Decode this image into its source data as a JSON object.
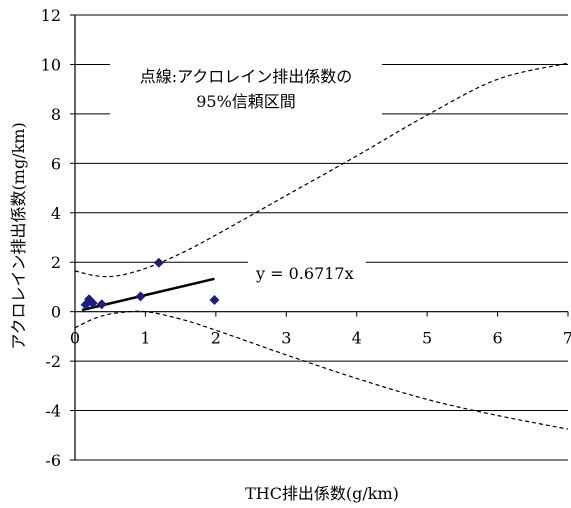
{
  "chart_data": {
    "type": "scatter",
    "xlabel": "THC排出係数(g/km)",
    "ylabel": "アクロレイン排出係数(mg/km)",
    "xlim": [
      0,
      7
    ],
    "ylim": [
      -6,
      12
    ],
    "x_ticks": [
      0,
      1,
      2,
      3,
      4,
      5,
      6,
      7
    ],
    "y_ticks": [
      -6,
      -4,
      -2,
      0,
      2,
      4,
      6,
      8,
      10,
      12
    ],
    "x_tick_labels": [
      "0",
      "1",
      "2",
      "3",
      "4",
      "5",
      "6",
      "7"
    ],
    "y_tick_labels": [
      "-6",
      "-4",
      "-2",
      "0",
      "2",
      "4",
      "6",
      "8",
      "10",
      "12"
    ],
    "grid": "horizontal",
    "marker_color": "#1f1f7a",
    "points": [
      {
        "x": 0.15,
        "y": 0.28
      },
      {
        "x": 0.2,
        "y": 0.5
      },
      {
        "x": 0.25,
        "y": 0.35
      },
      {
        "x": 0.38,
        "y": 0.3
      },
      {
        "x": 0.93,
        "y": 0.62
      },
      {
        "x": 1.19,
        "y": 1.98
      },
      {
        "x": 1.98,
        "y": 0.47
      }
    ],
    "regression": {
      "slope": 0.6717,
      "x_range": [
        0.1,
        1.98
      ],
      "label": "y = 0.6717x"
    },
    "ci_upper": [
      {
        "x": 0,
        "y": 1.65
      },
      {
        "x": 0.3,
        "y": 1.45
      },
      {
        "x": 0.6,
        "y": 1.45
      },
      {
        "x": 1.0,
        "y": 1.75
      },
      {
        "x": 1.5,
        "y": 2.35
      },
      {
        "x": 2.0,
        "y": 3.1
      },
      {
        "x": 3.0,
        "y": 4.7
      },
      {
        "x": 4.0,
        "y": 6.3
      },
      {
        "x": 5.0,
        "y": 7.95
      },
      {
        "x": 6.0,
        "y": 9.4
      },
      {
        "x": 7.0,
        "y": 10.05
      }
    ],
    "ci_lower": [
      {
        "x": 0,
        "y": -0.65
      },
      {
        "x": 0.3,
        "y": -0.25
      },
      {
        "x": 0.6,
        "y": -0.05
      },
      {
        "x": 1.0,
        "y": 0.0
      },
      {
        "x": 1.5,
        "y": -0.3
      },
      {
        "x": 2.0,
        "y": -0.75
      },
      {
        "x": 3.0,
        "y": -1.75
      },
      {
        "x": 4.0,
        "y": -2.7
      },
      {
        "x": 5.0,
        "y": -3.55
      },
      {
        "x": 6.0,
        "y": -4.2
      },
      {
        "x": 7.0,
        "y": -4.75
      }
    ],
    "annotation": {
      "line1": "点線:アクロレイン排出係数の",
      "line2": "95%信頼区間"
    }
  }
}
